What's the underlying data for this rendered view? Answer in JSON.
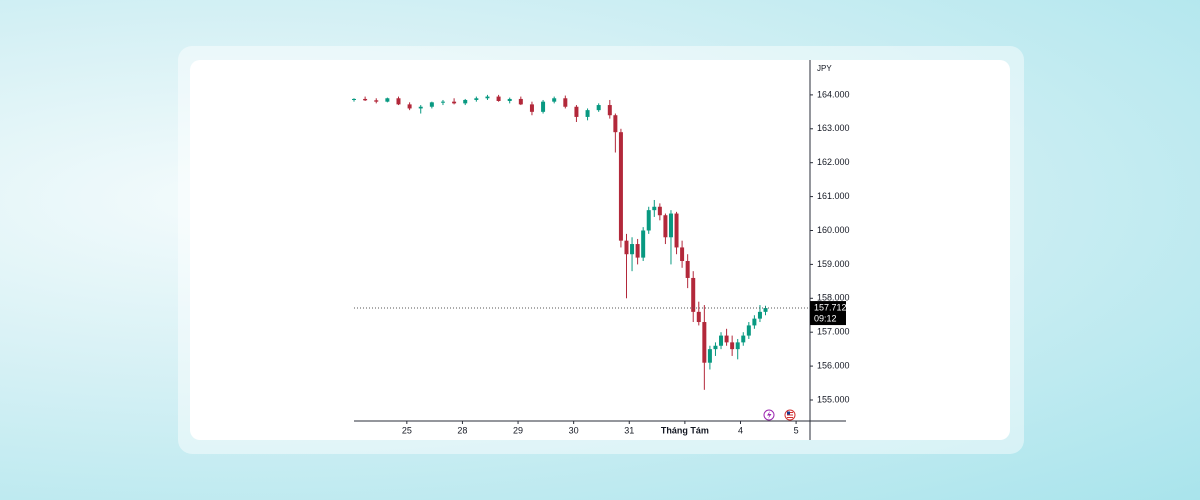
{
  "chart_data": {
    "type": "candlestick",
    "currency": "JPY",
    "up_color": "#089981",
    "down_color": "#b2283a",
    "xlim": [
      -0.95,
      7.25
    ],
    "xticks": [
      {
        "value": 0,
        "label": "25"
      },
      {
        "value": 1,
        "label": "28"
      },
      {
        "value": 2,
        "label": "29"
      },
      {
        "value": 3,
        "label": "30"
      },
      {
        "value": 4,
        "label": "31"
      },
      {
        "value": 5,
        "label": "Tháng Tám"
      },
      {
        "value": 6,
        "label": "4"
      },
      {
        "value": 7,
        "label": "5"
      }
    ],
    "ylim": [
      154.41,
      164.97
    ],
    "yticks": [
      {
        "value": 155,
        "label": "155.000"
      },
      {
        "value": 156,
        "label": "156.000"
      },
      {
        "value": 157,
        "label": "157.000"
      },
      {
        "value": 158,
        "label": "158.000"
      },
      {
        "value": 159,
        "label": "159.000"
      },
      {
        "value": 160,
        "label": "160.000"
      },
      {
        "value": 161,
        "label": "161.000"
      },
      {
        "value": 162,
        "label": "162.000"
      },
      {
        "value": 163,
        "label": "163.000"
      },
      {
        "value": 164,
        "label": "164.000"
      }
    ],
    "last_price": {
      "value": 157.712,
      "label": "157.712"
    },
    "countdown": "09:12",
    "x": [
      -0.95,
      -0.75,
      -0.55,
      -0.35,
      -0.15,
      0.05,
      0.25,
      0.45,
      0.65,
      0.85,
      1.05,
      1.25,
      1.45,
      1.65,
      1.85,
      2.05,
      2.25,
      2.45,
      2.65,
      2.85,
      3.05,
      3.25,
      3.45,
      3.65,
      3.75,
      3.85,
      3.95,
      4.05,
      4.15,
      4.25,
      4.35,
      4.45,
      4.55,
      4.65,
      4.75,
      4.85,
      4.95,
      5.05,
      5.15,
      5.25,
      5.35,
      5.45,
      5.55,
      5.65,
      5.75,
      5.85,
      5.95,
      6.05,
      6.15,
      6.25,
      6.35,
      6.45
    ],
    "open": [
      163.85,
      163.88,
      163.84,
      163.8,
      163.9,
      163.72,
      163.6,
      163.65,
      163.78,
      163.8,
      163.75,
      163.85,
      163.9,
      163.95,
      163.82,
      163.88,
      163.72,
      163.5,
      163.8,
      163.9,
      163.65,
      163.35,
      163.55,
      163.7,
      163.4,
      162.9,
      159.7,
      159.3,
      159.6,
      159.2,
      160.0,
      160.6,
      160.7,
      160.45,
      159.8,
      160.5,
      159.5,
      159.1,
      158.6,
      157.6,
      157.3,
      156.1,
      156.5,
      156.6,
      156.9,
      156.7,
      156.5,
      156.7,
      156.9,
      157.2,
      157.4,
      157.6
    ],
    "high": [
      163.9,
      163.95,
      163.9,
      163.92,
      163.95,
      163.78,
      163.7,
      163.8,
      163.85,
      163.9,
      163.88,
      163.95,
      164.0,
      164.0,
      163.92,
      163.95,
      163.8,
      163.85,
      163.95,
      163.98,
      163.7,
      163.6,
      163.75,
      163.85,
      163.45,
      163.0,
      159.9,
      159.8,
      159.75,
      160.1,
      160.7,
      160.9,
      160.8,
      160.5,
      160.6,
      160.55,
      159.7,
      159.3,
      158.8,
      157.9,
      157.8,
      156.6,
      156.7,
      157.0,
      157.1,
      156.9,
      156.8,
      157.0,
      157.3,
      157.5,
      157.8,
      157.78
    ],
    "low": [
      163.8,
      163.82,
      163.75,
      163.78,
      163.7,
      163.55,
      163.45,
      163.6,
      163.7,
      163.72,
      163.7,
      163.8,
      163.85,
      163.8,
      163.75,
      163.7,
      163.4,
      163.45,
      163.75,
      163.6,
      163.2,
      163.25,
      163.5,
      163.3,
      162.3,
      159.5,
      158.0,
      158.8,
      159.0,
      159.1,
      159.9,
      160.4,
      160.3,
      159.6,
      159.0,
      159.3,
      158.9,
      158.3,
      157.3,
      157.2,
      155.3,
      155.9,
      156.3,
      156.5,
      156.6,
      156.3,
      156.2,
      156.6,
      156.8,
      157.1,
      157.3,
      157.5
    ],
    "close": [
      163.88,
      163.84,
      163.8,
      163.9,
      163.72,
      163.6,
      163.65,
      163.78,
      163.8,
      163.75,
      163.85,
      163.9,
      163.95,
      163.82,
      163.88,
      163.72,
      163.5,
      163.8,
      163.9,
      163.65,
      163.35,
      163.55,
      163.7,
      163.4,
      162.9,
      159.7,
      159.3,
      159.6,
      159.2,
      160.0,
      160.6,
      160.7,
      160.45,
      159.8,
      160.5,
      159.5,
      159.1,
      158.6,
      157.6,
      157.3,
      156.1,
      156.5,
      156.6,
      156.9,
      156.7,
      156.5,
      156.7,
      156.9,
      157.2,
      157.4,
      157.6,
      157.712
    ]
  }
}
